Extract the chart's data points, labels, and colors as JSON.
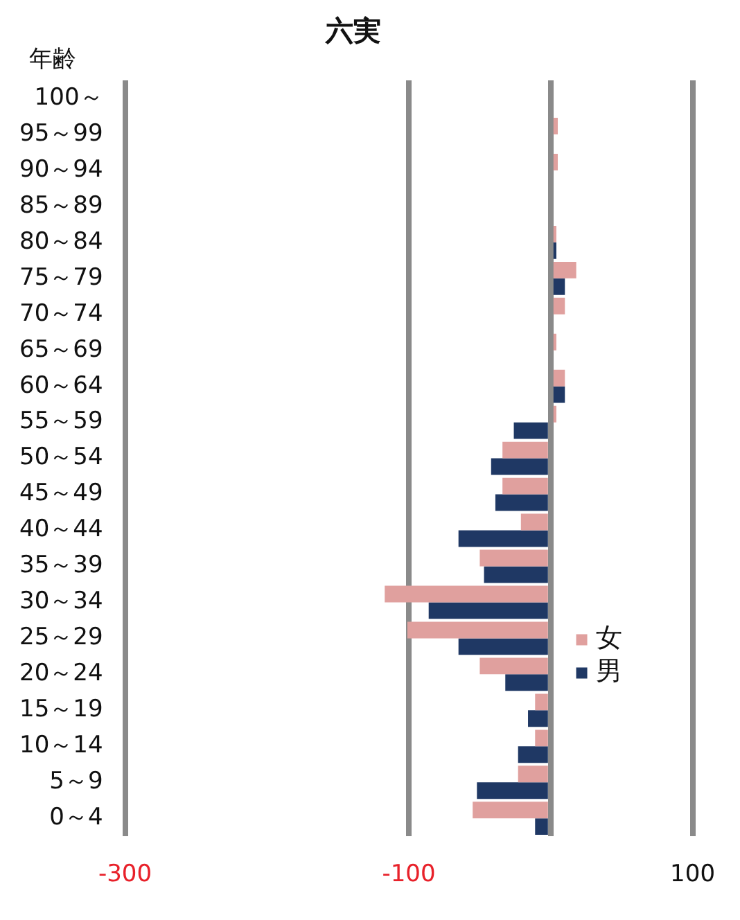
{
  "chart_data": {
    "type": "bar",
    "orientation": "horizontal",
    "title": "六実",
    "ylabel": "年齢",
    "categories": [
      "100～",
      "95～99",
      "90～94",
      "85～89",
      "80～84",
      "75～79",
      "70～74",
      "65～69",
      "60～64",
      "55～59",
      "50～54",
      "45～49",
      "40～44",
      "35～39",
      "30～34",
      "25～29",
      "20～24",
      "15～19",
      "10～14",
      "5～9",
      "0～4"
    ],
    "series": [
      {
        "name": "女",
        "color": "#e0a09e",
        "values": [
          0,
          5,
          5,
          0,
          4,
          18,
          10,
          4,
          10,
          4,
          -34,
          -34,
          -21,
          -50,
          -117,
          -101,
          -50,
          -11,
          -11,
          -23,
          -55
        ]
      },
      {
        "name": "男",
        "color": "#1f3864",
        "values": [
          0,
          null,
          0,
          0,
          4,
          10,
          null,
          0,
          10,
          -26,
          -42,
          -39,
          -65,
          -47,
          -86,
          -65,
          -32,
          -16,
          -23,
          -52,
          -11
        ]
      }
    ],
    "xlim": [
      -300,
      100
    ],
    "xticks": [
      -300,
      -100,
      {
        "value": 0,
        "label": null
      },
      100
    ],
    "grid": "x",
    "legend": "right"
  }
}
